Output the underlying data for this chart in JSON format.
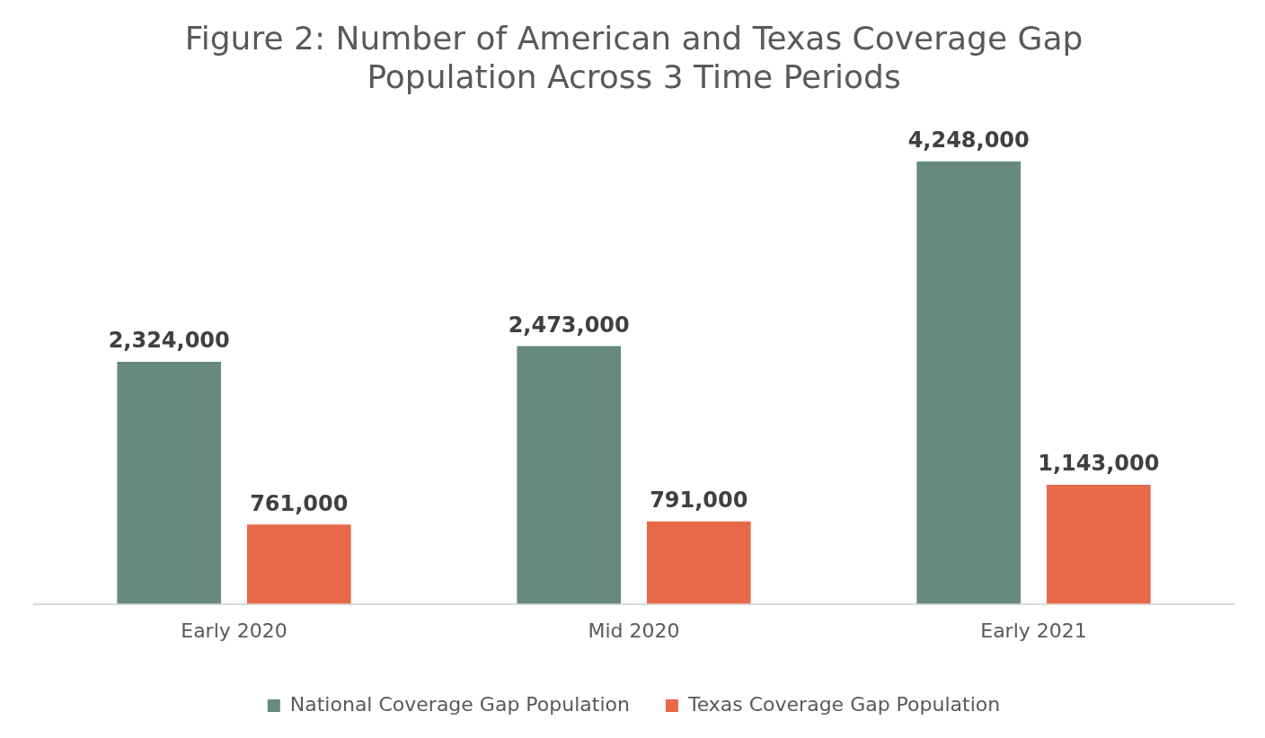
{
  "chart_data": {
    "type": "bar",
    "title": "Figure 2: Number of American and Texas Coverage Gap Population Across 3 Time Periods",
    "categories": [
      "Early 2020",
      "Mid 2020",
      "Early 2021"
    ],
    "series": [
      {
        "name": "National Coverage Gap Population",
        "color": "#678a7c",
        "values": [
          2324000,
          2473000,
          4248000
        ],
        "value_labels": [
          "2,324,000",
          "2,473,000",
          "4,248,000"
        ]
      },
      {
        "name": "Texas Coverage Gap Population",
        "color": "#e8694a",
        "values": [
          761000,
          791000,
          1143000
        ],
        "value_labels": [
          "761,000",
          "791,000",
          "1,143,000"
        ]
      }
    ],
    "grid": false,
    "legend": "bottom",
    "tick_labels": "x"
  }
}
